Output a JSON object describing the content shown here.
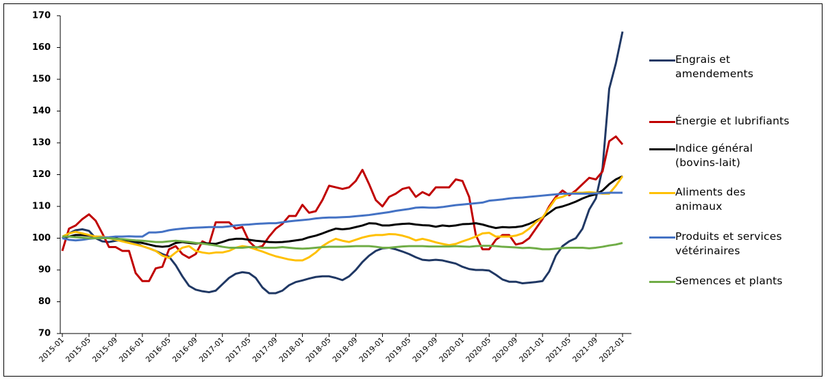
{
  "chart_data": {
    "type": "line",
    "categories": [
      "2015-01",
      null,
      null,
      null,
      "2015-05",
      null,
      null,
      null,
      "2015-09",
      null,
      null,
      null,
      "2016-01",
      null,
      null,
      null,
      "2016-05",
      null,
      null,
      null,
      "2016-09",
      null,
      null,
      null,
      "2017-01",
      null,
      null,
      null,
      "2017-05",
      null,
      null,
      null,
      "2017-09",
      null,
      null,
      null,
      "2018-01",
      null,
      null,
      null,
      "2018-05",
      null,
      null,
      null,
      "2018-09",
      null,
      null,
      null,
      "2019-01",
      null,
      null,
      null,
      "2019-05",
      null,
      null,
      null,
      "2019-09",
      null,
      null,
      null,
      "2020-01",
      null,
      null,
      null,
      "2020-05",
      null,
      null,
      null,
      "2020-09",
      null,
      null,
      null,
      "2021-01",
      null,
      null,
      null,
      "2021-05",
      null,
      null,
      null,
      "2021-09",
      null,
      null,
      null,
      "2022-01"
    ],
    "ylim": [
      70,
      170
    ],
    "yticks": [
      70,
      80,
      90,
      100,
      110,
      120,
      130,
      140,
      150,
      160,
      170
    ],
    "legend": "right",
    "series": [
      {
        "name": "Engrais et\namendements",
        "color": "#203864",
        "values": [
          100,
          101.5,
          102.5,
          102.8,
          102.3,
          100,
          99,
          98.8,
          99.2,
          99.5,
          99.2,
          98.5,
          97.5,
          96.8,
          96,
          95,
          94.2,
          91.5,
          88,
          85,
          83.8,
          83.3,
          83,
          83.5,
          85.5,
          87.5,
          88.8,
          89.3,
          89,
          87.5,
          84.5,
          82.7,
          82.7,
          83.5,
          85.2,
          86.2,
          86.7,
          87.3,
          87.8,
          88,
          88,
          87.5,
          86.8,
          88,
          90,
          92.5,
          94.5,
          96,
          96.8,
          97,
          96.5,
          95.8,
          95,
          94,
          93.2,
          93,
          93.2,
          93,
          92.5,
          92,
          91,
          90.3,
          90,
          90,
          89.8,
          88.5,
          87,
          86.3,
          86.3,
          85.8,
          86,
          86.2,
          86.5,
          89.5,
          94.5,
          97.5,
          99,
          100,
          103,
          109,
          112.5,
          122,
          147,
          155,
          165
        ]
      },
      {
        "name": "Énergie et lubrifiants",
        "color": "#c00000",
        "values": [
          96,
          103,
          104,
          106,
          107.5,
          105.5,
          101.5,
          97.2,
          97.2,
          96,
          96,
          89,
          86.5,
          86.5,
          90.5,
          91,
          96.5,
          97.5,
          95,
          93.8,
          95,
          99,
          98,
          105,
          105,
          105,
          103,
          103.5,
          99,
          97,
          97.5,
          100.5,
          103,
          104.5,
          107,
          107,
          110.5,
          108,
          108.5,
          112,
          116.5,
          116,
          115.5,
          116,
          118,
          121.5,
          117,
          112,
          110,
          113,
          114,
          115.5,
          116,
          113,
          114.5,
          113.5,
          116,
          116,
          116,
          118.5,
          118,
          113,
          101,
          96.5,
          96.5,
          99.5,
          101,
          101,
          98,
          98.5,
          100,
          103,
          106,
          110,
          113,
          115,
          113.5,
          115,
          117,
          119,
          118.5,
          121,
          130.5,
          132,
          129.5
        ]
      },
      {
        "name": "Indice général\n(bovins-lait)",
        "color": "#000000",
        "values": [
          100,
          100.5,
          101,
          101,
          100.8,
          100.5,
          100.3,
          100,
          100,
          99.5,
          99.3,
          99,
          98.5,
          98,
          97.5,
          97.3,
          97.5,
          98.5,
          98.8,
          98.5,
          98.3,
          98.5,
          98.3,
          98.2,
          98.8,
          99.5,
          99.8,
          99.8,
          99.5,
          99.2,
          99,
          98.8,
          98.7,
          98.8,
          99,
          99.3,
          99.6,
          100.3,
          100.8,
          101.5,
          102.3,
          103,
          102.8,
          103,
          103.5,
          104,
          104.7,
          104.6,
          104,
          104,
          104.3,
          104.5,
          104.6,
          104.3,
          104.1,
          104,
          103.6,
          104,
          103.8,
          104,
          104.4,
          104.5,
          104.7,
          104.3,
          103.7,
          103.2,
          103.5,
          103.4,
          103.5,
          103.8,
          104.5,
          105.5,
          106.5,
          108,
          109.5,
          110,
          110.7,
          111.5,
          112.5,
          113.3,
          113.8,
          115,
          117,
          118.5,
          119.5
        ]
      },
      {
        "name": "Aliments des\nanimaux",
        "color": "#ffc000",
        "values": [
          100.5,
          101.5,
          102,
          101.5,
          101,
          100.5,
          100.5,
          100,
          99.5,
          99,
          98.5,
          98,
          97.5,
          96.8,
          96,
          94.5,
          93.8,
          95.5,
          97,
          97.5,
          96,
          95.5,
          95.2,
          95.5,
          95.5,
          96,
          97,
          97.5,
          97.2,
          96.5,
          95.8,
          95,
          94.3,
          93.8,
          93.3,
          93,
          93,
          94,
          95.5,
          97.5,
          98.8,
          99.8,
          99.2,
          98.8,
          99.5,
          100.2,
          100.7,
          101,
          101,
          101.3,
          101.2,
          100.8,
          100.2,
          99.3,
          99.8,
          99.3,
          98.7,
          98.2,
          97.8,
          98.2,
          99,
          99.7,
          100.5,
          101.5,
          101.7,
          100.5,
          100.5,
          100.5,
          100.8,
          101.5,
          103,
          105,
          106.5,
          109.5,
          112.5,
          113,
          114,
          114.3,
          114.3,
          114.5,
          114.3,
          114,
          114,
          116.5,
          119.5
        ]
      },
      {
        "name": "Produits et services\nvétérinaires",
        "color": "#4472c4",
        "values": [
          100,
          99.5,
          99.3,
          99.5,
          99.8,
          100,
          100.2,
          100.3,
          100.5,
          100.5,
          100.6,
          100.5,
          100.5,
          101.8,
          101.8,
          102,
          102.5,
          102.8,
          103,
          103.2,
          103.3,
          103.4,
          103.5,
          103.5,
          103.5,
          103.7,
          104,
          104.2,
          104.3,
          104.5,
          104.6,
          104.7,
          104.7,
          105,
          105.3,
          105.5,
          105.7,
          105.9,
          106.2,
          106.4,
          106.5,
          106.5,
          106.6,
          106.7,
          106.9,
          107.1,
          107.3,
          107.6,
          107.9,
          108.2,
          108.6,
          108.9,
          109.2,
          109.6,
          109.7,
          109.6,
          109.6,
          109.8,
          110.1,
          110.4,
          110.6,
          110.8,
          111,
          111.2,
          111.8,
          112,
          112.2,
          112.5,
          112.7,
          112.8,
          113,
          113.2,
          113.4,
          113.6,
          113.8,
          114,
          114,
          114,
          114,
          114,
          114.1,
          114.2,
          114.3,
          114.3,
          114.3
        ]
      },
      {
        "name": "Semences et plants",
        "color": "#70ad47",
        "values": [
          100.5,
          100.5,
          100.3,
          100.2,
          100,
          100,
          100,
          100,
          99.8,
          99.7,
          99.5,
          99.3,
          99.2,
          99,
          98.8,
          98.8,
          99,
          99.2,
          99,
          98.8,
          98.5,
          98.3,
          98,
          97.7,
          97.3,
          97,
          97,
          97,
          97.2,
          97.2,
          97,
          97,
          97,
          97.2,
          97,
          96.8,
          96.7,
          96.8,
          97,
          97.2,
          97.3,
          97.3,
          97.3,
          97.4,
          97.5,
          97.5,
          97.5,
          97.3,
          97,
          97,
          97.2,
          97.4,
          97.5,
          97.5,
          97.5,
          97.4,
          97.4,
          97.4,
          97.4,
          97.5,
          97.4,
          97.3,
          97.5,
          97.6,
          97.6,
          97.5,
          97.3,
          97.2,
          97.1,
          96.9,
          97,
          96.8,
          96.5,
          96.5,
          96.7,
          96.9,
          97,
          97,
          97,
          96.8,
          97,
          97.3,
          97.7,
          98,
          98.5
        ]
      }
    ]
  }
}
